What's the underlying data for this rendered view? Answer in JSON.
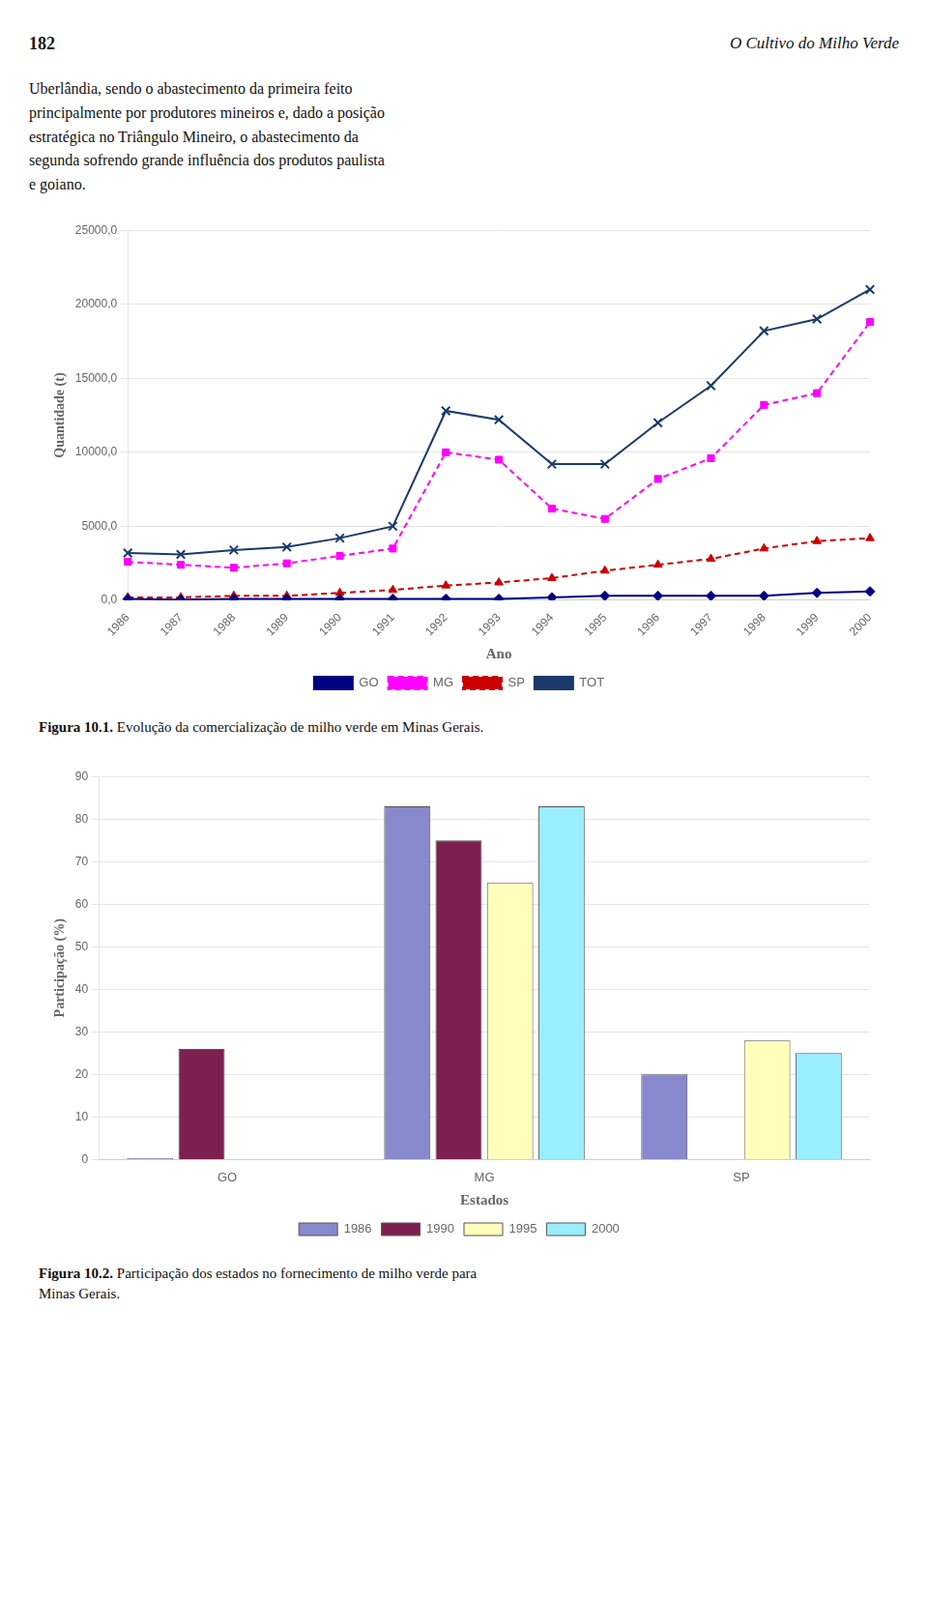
{
  "page_num": "182",
  "page_title": "O Cultivo do Milho Verde",
  "body_text": "Uberlândia, sendo o abastecimento da primeira feito\nprincipalmente por produtores mineiros e, dado a posição\nestratégica no Triângulo Mineiro, o abastecimento da\nsegunda sofrendo grande influência dos produtos paulista\ne goiano.",
  "chart_data": [
    {
      "type": "line",
      "categories": [
        "1986",
        "1987",
        "1988",
        "1989",
        "1990",
        "1991",
        "1992",
        "1993",
        "1994",
        "1995",
        "1996",
        "1997",
        "1998",
        "1999",
        "2000"
      ],
      "series": [
        {
          "name": "GO",
          "color": "#000080",
          "marker": "diamond",
          "line_style": "solid",
          "values": [
            100,
            50,
            100,
            100,
            100,
            100,
            100,
            100,
            200,
            300,
            300,
            300,
            300,
            500,
            600
          ]
        },
        {
          "name": "MG",
          "color": "#ff00ff",
          "marker": "square",
          "line_style": "dashed",
          "values": [
            2600,
            2400,
            2200,
            2500,
            3000,
            3500,
            10000,
            9500,
            6200,
            5500,
            8200,
            9600,
            13200,
            14000,
            18800
          ]
        },
        {
          "name": "SP",
          "color": "#cc0000",
          "marker": "triangle",
          "line_style": "dashed",
          "values": [
            200,
            200,
            300,
            300,
            500,
            700,
            1000,
            1200,
            1500,
            2000,
            2400,
            2800,
            3500,
            4000,
            4200
          ]
        },
        {
          "name": "TOT",
          "color": "#1a3a6b",
          "marker": "x",
          "line_style": "solid",
          "values": [
            3200,
            3100,
            3400,
            3600,
            4200,
            5000,
            12800,
            12200,
            9200,
            9200,
            12000,
            14500,
            18200,
            19000,
            21000
          ]
        }
      ],
      "xlabel": "Ano",
      "ylabel": "Quantidade (t)",
      "ylim": [
        0,
        25000
      ],
      "yticks": [
        {
          "value": 0,
          "label": "0,0"
        },
        {
          "value": 5000,
          "label": "5000,0"
        },
        {
          "value": 10000,
          "label": "10000,0"
        },
        {
          "value": 15000,
          "label": "15000,0"
        },
        {
          "value": 20000,
          "label": "20000,0"
        },
        {
          "value": 25000,
          "label": "25000,0"
        }
      ],
      "grid": true,
      "legend": "bottom",
      "caption": "Figura 10.1. Evolução da comercialização de milho verde em Minas Gerais."
    },
    {
      "type": "bar",
      "categories": [
        "GO",
        "MG",
        "SP"
      ],
      "series": [
        {
          "name": "1986",
          "color": "#8888cc",
          "values": [
            0.3,
            83,
            20
          ]
        },
        {
          "name": "1990",
          "color": "#7d2050",
          "values": [
            26,
            75,
            0
          ]
        },
        {
          "name": "1995",
          "color": "#ffffbb",
          "values": [
            0,
            65,
            28
          ]
        },
        {
          "name": "2000",
          "color": "#99eeff",
          "values": [
            0,
            83,
            25
          ]
        }
      ],
      "xlabel": "Estados",
      "ylabel": "Participação (%)",
      "ylim": [
        0,
        90
      ],
      "yticks": [
        0,
        10,
        20,
        30,
        40,
        50,
        60,
        70,
        80,
        90
      ],
      "grid": true,
      "legend": "bottom",
      "caption": "Figura 10.2. Participação dos estados no fornecimento de milho verde para\nMinas Gerais."
    }
  ]
}
